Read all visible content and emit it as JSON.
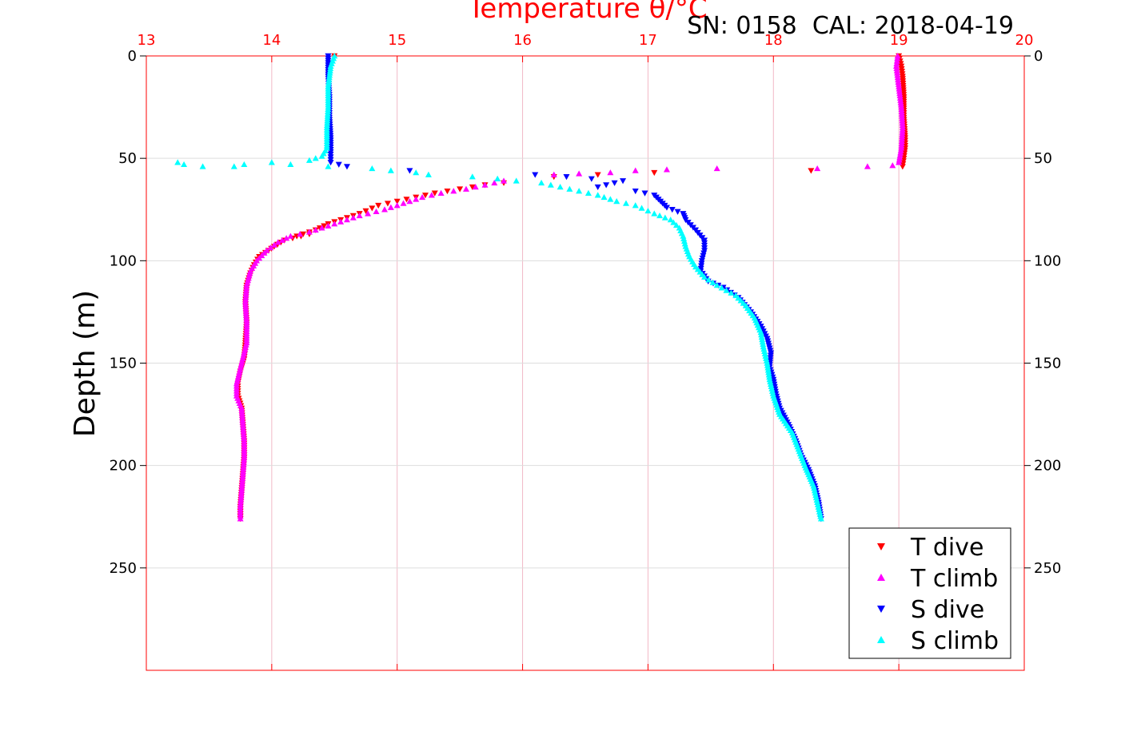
{
  "chart_data": {
    "type": "scatter",
    "title": "Temperature θ/°C",
    "annotation": "SN: 0158  CAL: 2018-04-19",
    "xlabel": "Temperature θ/°C",
    "ylabel": "Depth (m)",
    "xlim": [
      13,
      20
    ],
    "ylim": [
      300,
      0
    ],
    "y_reversed": true,
    "xticks": [
      "13",
      "14",
      "15",
      "16",
      "17",
      "18",
      "19",
      "20"
    ],
    "yticks": [
      "0",
      "50",
      "100",
      "150",
      "200",
      "250"
    ],
    "grid": true,
    "legend_position": "bottom-right",
    "colors": {
      "axis_top": "#ff0000",
      "grid": "#f2b8c6",
      "t_dive": "#ff0000",
      "t_climb": "#ff00ff",
      "s_dive": "#0000ff",
      "s_climb": "#00ffff"
    },
    "series": [
      {
        "name": "T dive",
        "marker": "triangle-down",
        "color": "#ff0000",
        "points": [
          [
            14.5,
            0
          ],
          [
            19.0,
            0
          ],
          [
            19.02,
            5
          ],
          [
            19.03,
            10
          ],
          [
            19.04,
            20
          ],
          [
            19.04,
            30
          ],
          [
            19.05,
            40
          ],
          [
            19.05,
            45
          ],
          [
            19.04,
            50
          ],
          [
            19.03,
            54
          ],
          [
            18.3,
            56
          ],
          [
            17.05,
            57
          ],
          [
            16.6,
            58
          ],
          [
            16.25,
            59
          ],
          [
            15.85,
            62
          ],
          [
            15.7,
            63
          ],
          [
            15.5,
            65
          ],
          [
            15.3,
            67
          ],
          [
            15.15,
            69
          ],
          [
            15.0,
            71
          ],
          [
            14.85,
            73
          ],
          [
            14.7,
            77
          ],
          [
            14.6,
            79
          ],
          [
            14.45,
            82
          ],
          [
            14.35,
            85
          ],
          [
            14.2,
            88
          ],
          [
            14.3,
            87
          ],
          [
            14.1,
            90
          ],
          [
            14.02,
            93
          ],
          [
            13.95,
            96
          ],
          [
            13.9,
            98
          ],
          [
            13.86,
            102
          ],
          [
            13.83,
            106
          ],
          [
            13.8,
            112
          ],
          [
            13.79,
            120
          ],
          [
            13.8,
            130
          ],
          [
            13.79,
            140
          ],
          [
            13.78,
            148
          ],
          [
            13.75,
            154
          ],
          [
            13.73,
            160
          ],
          [
            13.73,
            166
          ],
          [
            13.76,
            172
          ],
          [
            13.77,
            180
          ],
          [
            13.78,
            188
          ],
          [
            13.78,
            196
          ],
          [
            13.77,
            204
          ],
          [
            13.76,
            212
          ],
          [
            13.75,
            220
          ],
          [
            13.75,
            226
          ]
        ]
      },
      {
        "name": "T climb",
        "marker": "triangle-up",
        "color": "#ff00ff",
        "points": [
          [
            13.75,
            226
          ],
          [
            13.75,
            220
          ],
          [
            13.76,
            212
          ],
          [
            13.77,
            204
          ],
          [
            13.78,
            196
          ],
          [
            13.78,
            188
          ],
          [
            13.77,
            180
          ],
          [
            13.76,
            172
          ],
          [
            13.72,
            166
          ],
          [
            13.72,
            160
          ],
          [
            13.76,
            150
          ],
          [
            13.8,
            140
          ],
          [
            13.8,
            130
          ],
          [
            13.79,
            120
          ],
          [
            13.8,
            112
          ],
          [
            13.83,
            105
          ],
          [
            13.88,
            100
          ],
          [
            13.96,
            95
          ],
          [
            14.05,
            91
          ],
          [
            14.15,
            88
          ],
          [
            14.3,
            86
          ],
          [
            14.45,
            83
          ],
          [
            14.6,
            80
          ],
          [
            14.7,
            78
          ],
          [
            14.9,
            75
          ],
          [
            15.05,
            72
          ],
          [
            15.2,
            69
          ],
          [
            15.35,
            67
          ],
          [
            15.55,
            65
          ],
          [
            15.7,
            63
          ],
          [
            15.85,
            61
          ],
          [
            16.25,
            58
          ],
          [
            16.45,
            57.5
          ],
          [
            16.7,
            57
          ],
          [
            16.9,
            56
          ],
          [
            17.15,
            55.5
          ],
          [
            17.55,
            55
          ],
          [
            18.35,
            55
          ],
          [
            18.75,
            54
          ],
          [
            18.95,
            53.5
          ],
          [
            19.0,
            52
          ],
          [
            19.02,
            45
          ],
          [
            19.03,
            35
          ],
          [
            19.02,
            25
          ],
          [
            19.0,
            15
          ],
          [
            18.98,
            5
          ],
          [
            18.99,
            0
          ]
        ]
      },
      {
        "name": "S dive",
        "marker": "triangle-down",
        "color": "#0000ff",
        "points": [
          [
            14.45,
            0
          ],
          [
            14.45,
            10
          ],
          [
            14.46,
            20
          ],
          [
            14.46,
            30
          ],
          [
            14.47,
            40
          ],
          [
            14.47,
            48
          ],
          [
            14.47,
            52
          ],
          [
            14.6,
            54
          ],
          [
            15.1,
            56
          ],
          [
            16.1,
            58
          ],
          [
            16.35,
            59
          ],
          [
            16.55,
            60
          ],
          [
            16.8,
            61
          ],
          [
            16.6,
            64
          ],
          [
            16.9,
            66
          ],
          [
            17.05,
            68
          ],
          [
            17.1,
            71
          ],
          [
            17.15,
            74
          ],
          [
            17.28,
            77
          ],
          [
            17.3,
            80
          ],
          [
            17.38,
            85
          ],
          [
            17.45,
            90
          ],
          [
            17.45,
            95
          ],
          [
            17.43,
            100
          ],
          [
            17.42,
            105
          ],
          [
            17.48,
            110
          ],
          [
            17.6,
            113
          ],
          [
            17.72,
            118
          ],
          [
            17.82,
            125
          ],
          [
            17.9,
            132
          ],
          [
            17.95,
            138
          ],
          [
            17.98,
            145
          ],
          [
            17.97,
            152
          ],
          [
            18.0,
            158
          ],
          [
            18.02,
            165
          ],
          [
            18.05,
            172
          ],
          [
            18.12,
            180
          ],
          [
            18.18,
            188
          ],
          [
            18.22,
            195
          ],
          [
            18.28,
            202
          ],
          [
            18.33,
            210
          ],
          [
            18.36,
            218
          ],
          [
            18.38,
            226
          ]
        ]
      },
      {
        "name": "S climb",
        "marker": "triangle-up",
        "color": "#00ffff",
        "points": [
          [
            18.38,
            226
          ],
          [
            18.35,
            218
          ],
          [
            18.32,
            210
          ],
          [
            18.25,
            200
          ],
          [
            18.2,
            192
          ],
          [
            18.15,
            184
          ],
          [
            18.05,
            175
          ],
          [
            18.0,
            166
          ],
          [
            17.97,
            158
          ],
          [
            17.95,
            150
          ],
          [
            17.92,
            142
          ],
          [
            17.9,
            135
          ],
          [
            17.85,
            128
          ],
          [
            17.78,
            122
          ],
          [
            17.7,
            117
          ],
          [
            17.55,
            112
          ],
          [
            17.45,
            108
          ],
          [
            17.38,
            103
          ],
          [
            17.33,
            98
          ],
          [
            17.3,
            93
          ],
          [
            17.28,
            88
          ],
          [
            17.25,
            84
          ],
          [
            17.18,
            80
          ],
          [
            17.05,
            77
          ],
          [
            16.9,
            73
          ],
          [
            16.75,
            71
          ],
          [
            16.6,
            68
          ],
          [
            16.45,
            66
          ],
          [
            16.3,
            64
          ],
          [
            16.15,
            62
          ],
          [
            15.95,
            61
          ],
          [
            15.8,
            60
          ],
          [
            15.6,
            59
          ],
          [
            15.25,
            58
          ],
          [
            15.15,
            57
          ],
          [
            14.95,
            56
          ],
          [
            14.8,
            55
          ],
          [
            14.45,
            54
          ],
          [
            14.15,
            53
          ],
          [
            14.0,
            52
          ],
          [
            13.78,
            53
          ],
          [
            13.7,
            54
          ],
          [
            13.45,
            54
          ],
          [
            13.3,
            53
          ],
          [
            13.25,
            52
          ],
          [
            14.3,
            51
          ],
          [
            14.4,
            49
          ],
          [
            14.44,
            45
          ],
          [
            14.44,
            35
          ],
          [
            14.45,
            25
          ],
          [
            14.45,
            15
          ],
          [
            14.47,
            5
          ],
          [
            14.5,
            0
          ]
        ]
      }
    ]
  }
}
